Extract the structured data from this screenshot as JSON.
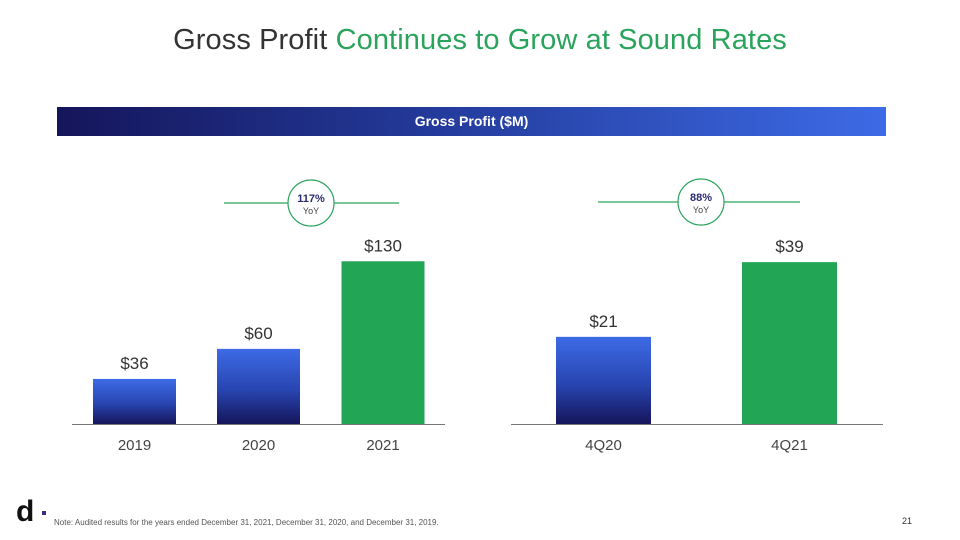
{
  "slide": {
    "title_main": "Gross Profit",
    "title_accent": "Continues to Grow at Sound Rates",
    "banner": "Gross Profit ($M)",
    "note": "Note: Audited results for the years ended December 31, 2021, December 31, 2020, and December 31, 2019.",
    "page_number": "21",
    "logo_text": "d",
    "colors": {
      "accent_green": "#2aa45c",
      "bar_blue_top": "#3d6be6",
      "bar_blue_bottom": "#15155a",
      "bar_green": "#23a556"
    }
  },
  "chart_data": [
    {
      "type": "bar",
      "categories": [
        "2019",
        "2020",
        "2021"
      ],
      "values": [
        36,
        60,
        130
      ],
      "labels": [
        "$36",
        "$60",
        "$130"
      ],
      "colors": [
        "blue",
        "blue",
        "green"
      ],
      "growth": {
        "value": "117%",
        "sub": "YoY"
      },
      "ylim": [
        0,
        135
      ]
    },
    {
      "type": "bar",
      "categories": [
        "4Q20",
        "4Q21"
      ],
      "values": [
        21,
        39
      ],
      "labels": [
        "$21",
        "$39"
      ],
      "colors": [
        "blue",
        "green"
      ],
      "growth": {
        "value": "88%",
        "sub": "YoY"
      },
      "ylim": [
        0,
        40
      ]
    }
  ]
}
